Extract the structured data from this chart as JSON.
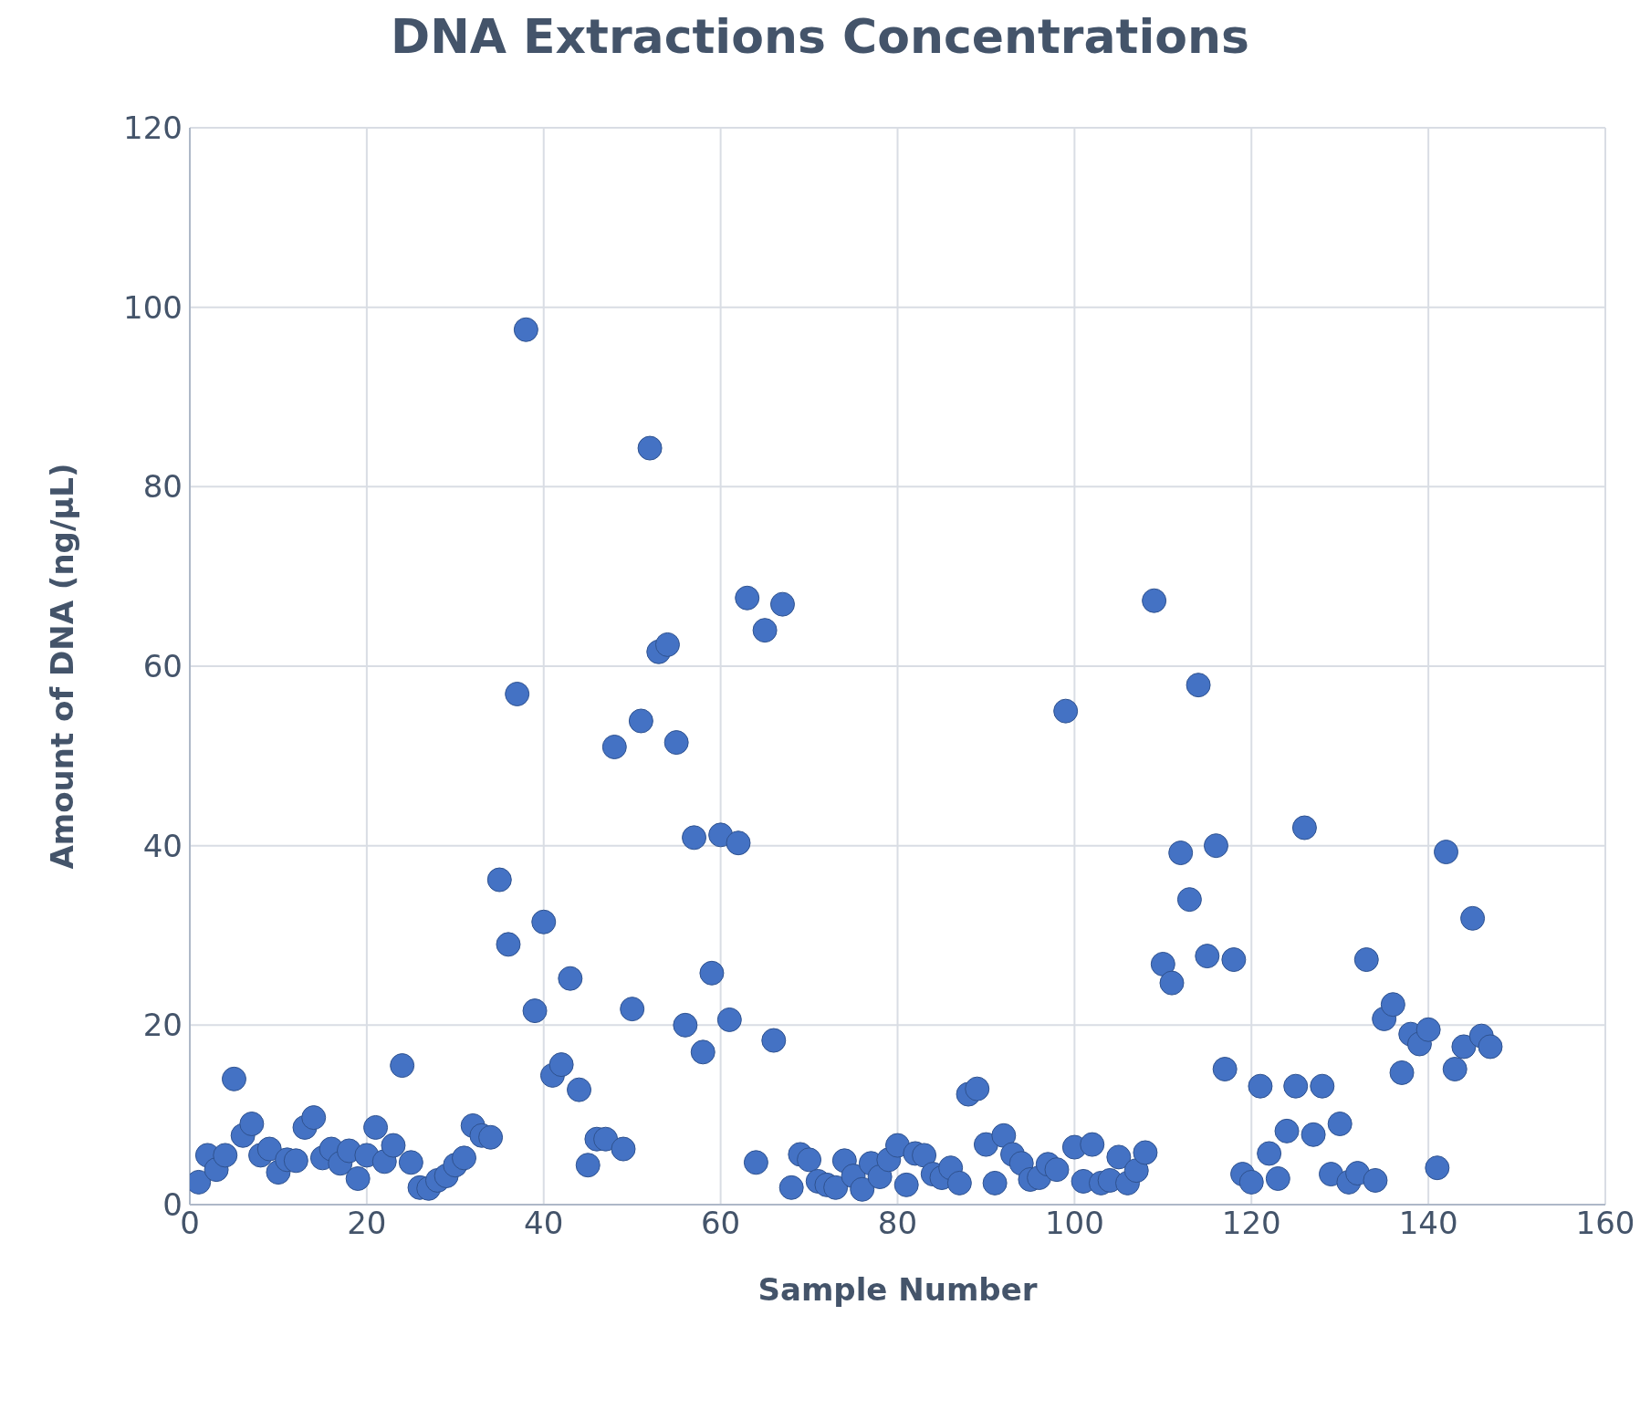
{
  "chart_data": {
    "type": "scatter",
    "title": "DNA Extractions Concentrations",
    "xlabel": "Sample Number",
    "ylabel": "Amount of DNA (ng/µL)",
    "x": [
      1,
      2,
      3,
      4,
      5,
      6,
      7,
      8,
      9,
      10,
      11,
      12,
      13,
      14,
      15,
      16,
      17,
      18,
      19,
      20,
      21,
      22,
      23,
      24,
      25,
      26,
      27,
      28,
      29,
      30,
      31,
      32,
      33,
      34,
      35,
      36,
      37,
      38,
      39,
      40,
      41,
      42,
      43,
      44,
      45,
      46,
      47,
      48,
      49,
      50,
      51,
      52,
      53,
      54,
      55,
      56,
      57,
      58,
      59,
      60,
      61,
      62,
      63,
      64,
      65,
      66,
      67,
      68,
      69,
      70,
      71,
      72,
      73,
      74,
      75,
      76,
      77,
      78,
      79,
      80,
      81,
      82,
      83,
      84,
      85,
      86,
      87,
      88,
      89,
      90,
      91,
      92,
      93,
      94,
      95,
      96,
      97,
      98,
      99,
      100,
      101,
      102,
      103,
      104,
      105,
      106,
      107,
      108,
      109,
      110,
      111,
      112,
      113,
      114,
      115,
      116,
      117,
      118,
      119,
      120,
      121,
      122,
      123,
      124,
      125,
      126,
      127,
      128,
      129,
      130,
      131,
      132,
      133,
      134,
      135,
      136,
      137,
      138,
      139,
      140,
      141,
      142,
      143,
      144,
      145,
      146,
      147
    ],
    "series": [
      {
        "color": "#4472c4",
        "values": [
          2.5,
          5.5,
          3.9,
          5.5,
          14,
          7.7,
          9,
          5.5,
          6.2,
          3.6,
          5,
          4.9,
          8.6,
          9.7,
          5.2,
          6.2,
          4.6,
          6,
          2.9,
          5.5,
          8.6,
          4.8,
          6.6,
          15.5,
          4.7,
          1.9,
          1.8,
          2.7,
          3.2,
          4.4,
          5.2,
          8.8,
          7.7,
          7.5,
          36.2,
          29,
          56.9,
          97.5,
          21.6,
          31.5,
          14.4,
          15.6,
          25.2,
          12.8,
          4.4,
          7.3,
          7.3,
          51,
          6.2,
          21.8,
          53.9,
          84.3,
          61.6,
          62.4,
          51.5,
          20,
          40.9,
          17,
          25.8,
          41.2,
          20.6,
          40.3,
          67.6,
          4.7,
          64,
          18.3,
          66.9,
          1.9,
          5.6,
          5,
          2.6,
          2.2,
          1.9,
          4.9,
          3.2,
          1.7,
          4.6,
          3.1,
          5,
          6.6,
          2.2,
          5.7,
          5.5,
          3.4,
          3,
          4.1,
          2.4,
          12.3,
          12.9,
          6.7,
          2.4,
          7.7,
          5.6,
          4.6,
          2.8,
          3,
          4.5,
          3.9,
          55,
          6.4,
          2.6,
          6.7,
          2.4,
          2.7,
          5.3,
          2.4,
          3.8,
          5.8,
          67.3,
          26.8,
          24.7,
          39.2,
          34,
          57.9,
          27.7,
          40,
          15.1,
          27.3,
          3.4,
          2.5,
          13.2,
          5.7,
          2.9,
          8.2,
          13.2,
          42,
          7.8,
          13.2,
          3.4,
          9,
          2.5,
          3.5,
          27.3,
          2.7,
          20.7,
          22.3,
          14.7,
          19,
          17.9,
          19.5,
          4.1,
          39.3,
          15.1,
          17.6,
          31.9,
          18.8,
          17.6
        ]
      }
    ],
    "xlim": [
      0,
      160
    ],
    "xticks": [
      0,
      20,
      40,
      60,
      80,
      100,
      120,
      140,
      160
    ],
    "ylim": [
      0,
      120
    ],
    "yticks": [
      0,
      20,
      40,
      60,
      80,
      100,
      120
    ],
    "grid": true,
    "marker": "circle"
  }
}
